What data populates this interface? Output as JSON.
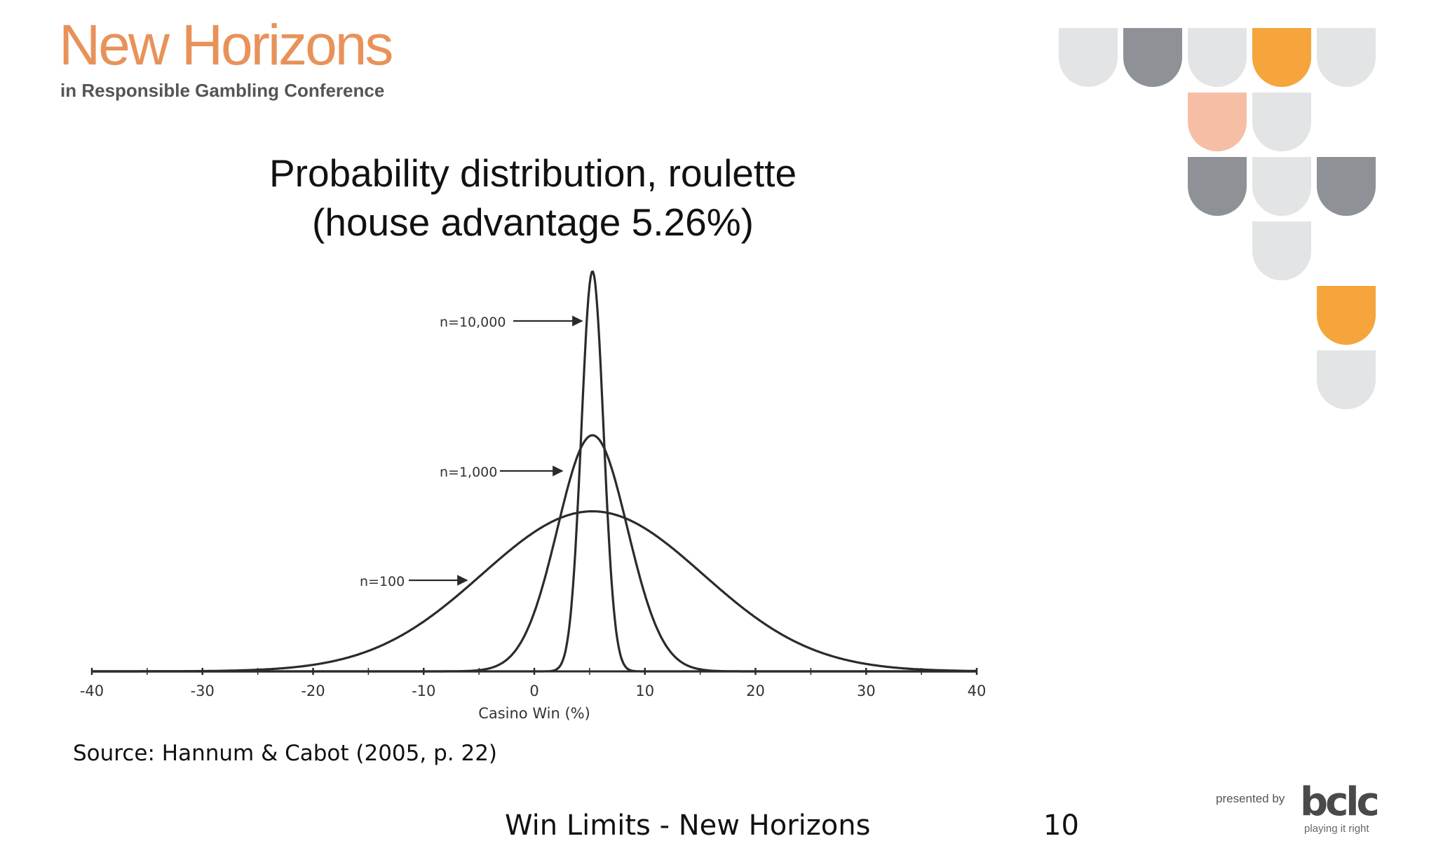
{
  "header": {
    "conference_name": "New Horizons",
    "conference_subtitle": "in Responsible Gambling Conference"
  },
  "slide": {
    "title_line1": "Probability distribution, roulette",
    "title_line2": "(house advantage 5.26%)",
    "source": "Source:  Hannum & Cabot (2005, p. 22)"
  },
  "footer": {
    "text": "Win Limits - New Horizons",
    "page_number": "10"
  },
  "sponsor": {
    "label": "presented by",
    "brand": "bclc",
    "tagline": "playing it right"
  },
  "colors": {
    "brand_orange": "#f5a53c",
    "brand_peach": "#f6bfa5",
    "brand_gray": "#8e9196",
    "brand_light": "#e3e4e5",
    "title_orange": "#e8925a",
    "curve": "#2b2b2b"
  },
  "chart_data": {
    "type": "line",
    "title": "Probability distribution, roulette (house advantage 5.26%)",
    "xlabel": "Casino Win (%)",
    "ylabel": "",
    "xlim": [
      -40,
      40
    ],
    "x_ticks": [
      "-40",
      "-30",
      "-20",
      "-10",
      "0",
      "10",
      "20",
      "30",
      "40"
    ],
    "grid": false,
    "mean": 5.26,
    "series": [
      {
        "name": "n=100",
        "mean": 5.26,
        "std_dev": 9.99,
        "peak_relative": 0.4
      },
      {
        "name": "n=1,000",
        "mean": 5.26,
        "std_dev": 3.16,
        "peak_relative": 0.59
      },
      {
        "name": "n=10,000",
        "mean": 5.26,
        "std_dev": 1.0,
        "peak_relative": 1.0
      }
    ],
    "annotations": [
      "n=10,000",
      "n=1,000",
      "n=100"
    ]
  }
}
